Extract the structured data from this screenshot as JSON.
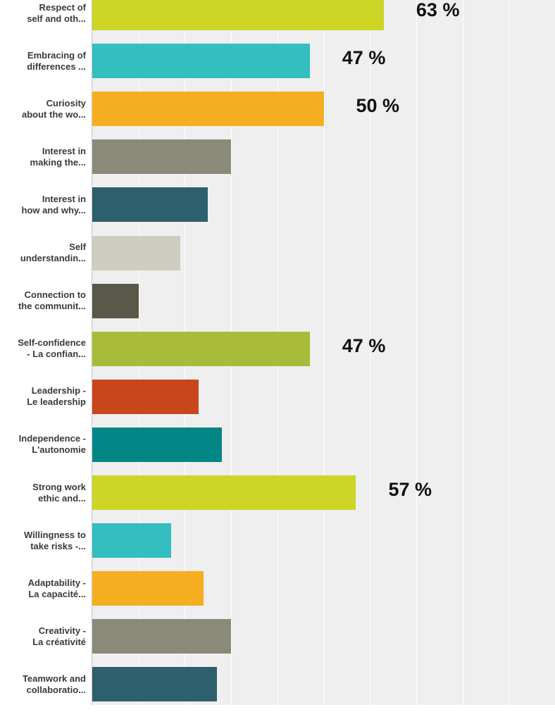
{
  "chart_data": {
    "type": "bar",
    "orientation": "horizontal",
    "categories": [
      "Respect of\nself and oth...",
      "Embracing of\ndifferences ...",
      "Curiosity\nabout the wo...",
      "Interest in\nmaking the...",
      "Interest in\nhow and why...",
      "Self\nunderstandin...",
      "Connection to\nthe communit...",
      "Self-confidence\n- La confian...",
      "Leadership -\nLe leadership",
      "Independence -\nL'autonomie",
      "Strong work\nethic and...",
      "Willingness to\ntake risks -...",
      "Adaptability -\nLa capacité...",
      "Creativity -\nLa créativité",
      "Teamwork and\ncollaboratio..."
    ],
    "values": [
      63,
      47,
      50,
      30,
      25,
      19,
      10,
      47,
      23,
      28,
      57,
      17,
      24,
      30,
      27
    ],
    "value_labels": [
      "63 %",
      "47 %",
      "50 %",
      "",
      "",
      "",
      "",
      "47 %",
      "",
      "",
      "57 %",
      "",
      "",
      "",
      ""
    ],
    "colors": [
      "#cdd527",
      "#33bec0",
      "#f6ae21",
      "#8b8a79",
      "#2e5f6c",
      "#cfcdc2",
      "#5a5848",
      "#a8bb3a",
      "#c9461c",
      "#028585",
      "#cdd527",
      "#33bec0",
      "#f6ae21",
      "#8b8a79",
      "#2e5f6c"
    ],
    "xlim": [
      0,
      100
    ],
    "grid": true,
    "title": "",
    "xlabel": "",
    "ylabel": ""
  }
}
